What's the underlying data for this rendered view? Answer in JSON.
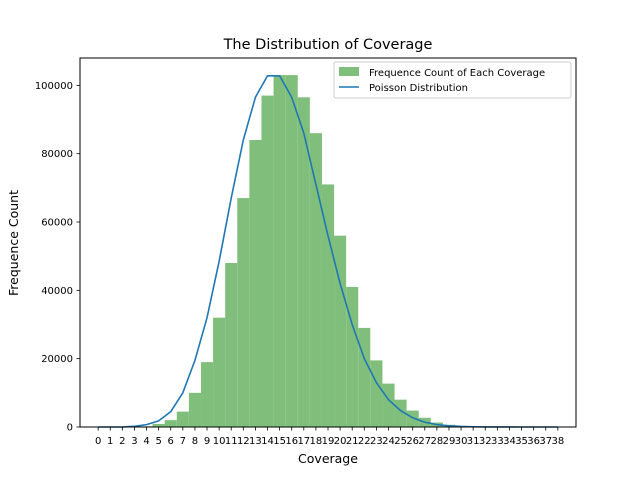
{
  "chart_data": {
    "type": "bar",
    "title": "The Distribution of Coverage",
    "xlabel": "Coverage",
    "ylabel": "Frequence Count",
    "x": [
      0,
      1,
      2,
      3,
      4,
      5,
      6,
      7,
      8,
      9,
      10,
      11,
      12,
      13,
      14,
      15,
      16,
      17,
      18,
      19,
      20,
      21,
      22,
      23,
      24,
      25,
      26,
      27,
      28,
      29,
      30,
      31,
      32,
      33,
      34,
      35,
      36,
      37,
      38
    ],
    "x_tick_labels": [
      "0",
      "1",
      "2",
      "3",
      "4",
      "5",
      "6",
      "7",
      "8",
      "9",
      "10",
      "11",
      "12",
      "13",
      "14",
      "15",
      "16",
      "17",
      "18",
      "19",
      "20",
      "21",
      "22",
      "23",
      "24",
      "25",
      "26",
      "27",
      "28",
      "29",
      "30",
      "31",
      "32",
      "33",
      "34",
      "35",
      "36",
      "37",
      "38"
    ],
    "xlim": [
      -1.5,
      39.5
    ],
    "ylim": [
      0,
      108000
    ],
    "y_ticks": [
      0,
      20000,
      40000,
      60000,
      80000,
      100000
    ],
    "y_tick_labels": [
      "0",
      "20000",
      "40000",
      "60000",
      "80000",
      "100000"
    ],
    "legend_position": "top-right",
    "grid": false,
    "series": [
      {
        "name": "Frequence Count of Each Coverage",
        "kind": "bar",
        "color": "#7fbf7b",
        "values": [
          0,
          0,
          0,
          0,
          200,
          900,
          2000,
          4500,
          10000,
          19000,
          32000,
          48000,
          67000,
          84000,
          97000,
          103000,
          103000,
          96500,
          86000,
          71000,
          56000,
          41000,
          29000,
          19500,
          12700,
          8000,
          4800,
          2700,
          1300,
          650,
          300,
          120,
          50,
          20,
          10,
          5,
          0,
          0,
          0
        ]
      },
      {
        "name": "Poisson Distribution",
        "kind": "line",
        "color": "#1f77b4",
        "values": [
          0,
          0,
          0,
          200,
          700,
          1800,
          4500,
          10000,
          19500,
          32000,
          48500,
          67000,
          84000,
          96500,
          102800,
          102800,
          96500,
          86000,
          71000,
          56000,
          42000,
          30000,
          20000,
          13000,
          8000,
          4800,
          2700,
          1400,
          700,
          350,
          160,
          70,
          30,
          12,
          5,
          2,
          0,
          0,
          0
        ]
      }
    ]
  }
}
